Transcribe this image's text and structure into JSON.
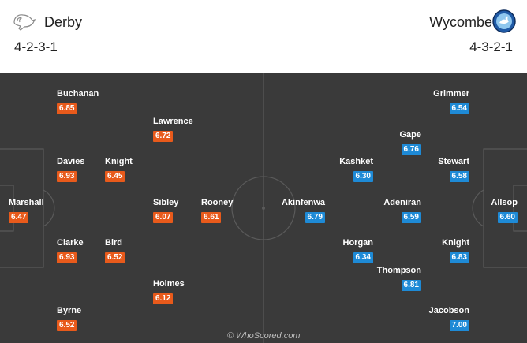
{
  "home": {
    "name": "Derby",
    "formation": "4-2-3-1",
    "crest_icon": "ram-crest-icon"
  },
  "away": {
    "name": "Wycombe",
    "formation": "4-3-2-1",
    "crest_icon": "swan-crest-icon"
  },
  "home_players": [
    {
      "name": "Buchanan",
      "rating": "6.85"
    },
    {
      "name": "Lawrence",
      "rating": "6.72"
    },
    {
      "name": "Davies",
      "rating": "6.93"
    },
    {
      "name": "Knight",
      "rating": "6.45"
    },
    {
      "name": "Marshall",
      "rating": "6.47"
    },
    {
      "name": "Sibley",
      "rating": "6.07"
    },
    {
      "name": "Rooney",
      "rating": "6.61"
    },
    {
      "name": "Clarke",
      "rating": "6.93"
    },
    {
      "name": "Bird",
      "rating": "6.52"
    },
    {
      "name": "Holmes",
      "rating": "6.12"
    },
    {
      "name": "Byrne",
      "rating": "6.52"
    }
  ],
  "away_players": [
    {
      "name": "Grimmer",
      "rating": "6.54"
    },
    {
      "name": "Gape",
      "rating": "6.76"
    },
    {
      "name": "Kashket",
      "rating": "6.30"
    },
    {
      "name": "Stewart",
      "rating": "6.58"
    },
    {
      "name": "Akinfenwa",
      "rating": "6.79"
    },
    {
      "name": "Adeniran",
      "rating": "6.59"
    },
    {
      "name": "Allsop",
      "rating": "6.60"
    },
    {
      "name": "Horgan",
      "rating": "6.34"
    },
    {
      "name": "Knight",
      "rating": "6.83"
    },
    {
      "name": "Thompson",
      "rating": "6.81"
    },
    {
      "name": "Jacobson",
      "rating": "7.00"
    }
  ],
  "watermark": "© WhoScored.com",
  "colors": {
    "home_rating": "#e85a1b",
    "away_rating": "#1e8ad6",
    "pitch": "#3a3a3a"
  }
}
